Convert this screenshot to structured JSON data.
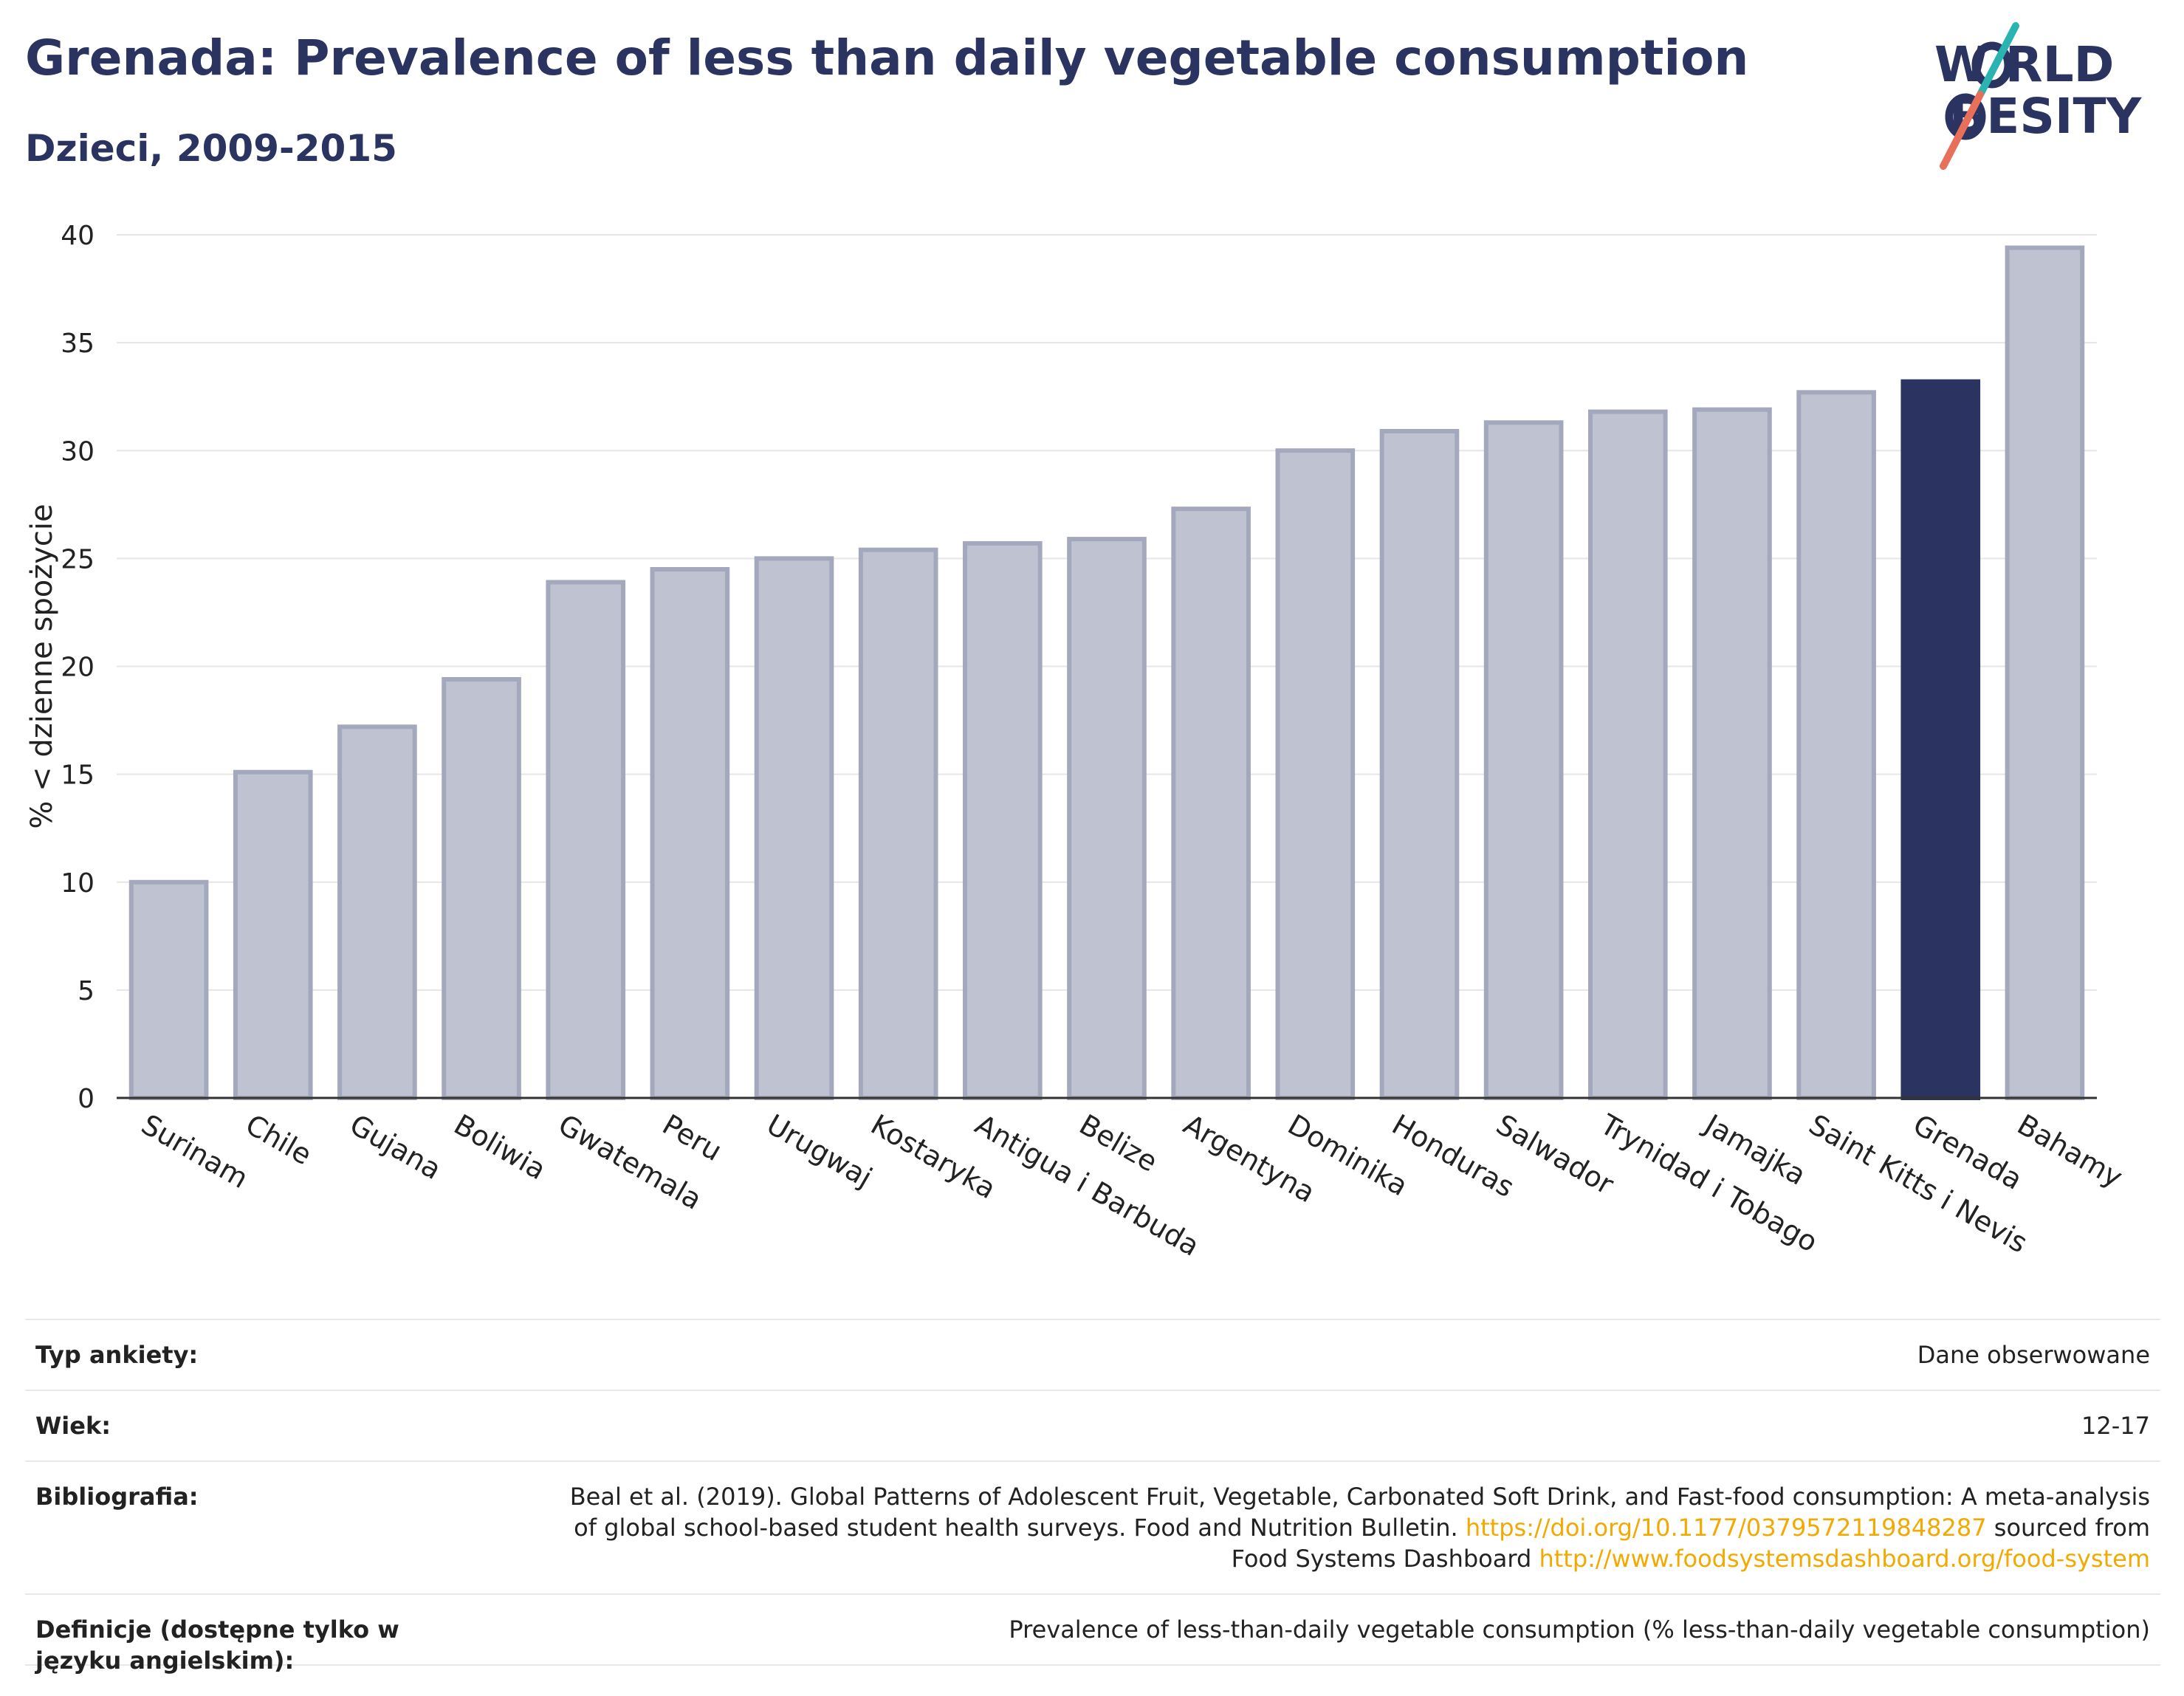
{
  "header": {
    "title": "Grenada: Prevalence of less than daily vegetable consumption",
    "subtitle": "Dzieci, 2009-2015"
  },
  "logo": {
    "line1": "W RLD",
    "line2": "BESITY",
    "accent_teal": "#2ab3b1",
    "accent_coral": "#e8705a"
  },
  "colors": {
    "bar": "#bfc2d0",
    "bar_stroke": "#a4a8bc",
    "highlight": "#2b3461",
    "grid": "#e6e6e6",
    "axis": "#333333"
  },
  "chart_data": {
    "type": "bar",
    "ylabel": "% < dzienne spożycie",
    "ylim": [
      0,
      40
    ],
    "yticks": [
      0,
      5,
      10,
      15,
      20,
      25,
      30,
      35,
      40
    ],
    "categories": [
      "Surinam",
      "Chile",
      "Gujana",
      "Boliwia",
      "Gwatemala",
      "Peru",
      "Urugwaj",
      "Kostaryka",
      "Antigua i Barbuda",
      "Belize",
      "Argentyna",
      "Dominika",
      "Honduras",
      "Salwador",
      "Trynidad i Tobago",
      "Jamajka",
      "Saint Kitts i Nevis",
      "Grenada",
      "Bahamy"
    ],
    "values": [
      10.0,
      15.1,
      17.2,
      19.4,
      23.9,
      24.5,
      25.0,
      25.4,
      25.7,
      25.9,
      27.3,
      30.0,
      30.9,
      31.3,
      31.8,
      31.9,
      32.7,
      33.2,
      39.4
    ],
    "highlight": "Grenada"
  },
  "info": {
    "survey_type": {
      "label": "Typ ankiety:",
      "value": "Dane obserwowane"
    },
    "age": {
      "label": "Wiek:",
      "value": "12-17"
    },
    "bibliography": {
      "label": "Bibliografia:",
      "text1": "Beal et al. (2019). Global Patterns of Adolescent Fruit, Vegetable, Carbonated Soft Drink, and Fast-food consumption: A meta-analysis of global school-based student health surveys. Food and Nutrition Bulletin.",
      "link1": "https://doi.org/10.1177/0379572119848287",
      "text2": "sourced from Food Systems Dashboard",
      "link2": "http://www.foodsystemsdashboard.org/food-system"
    },
    "definitions": {
      "label": "Definicje (dostępne tylko w języku angielskim):",
      "value": "Prevalence of less-than-daily vegetable consumption (% less-than-daily vegetable consumption)"
    }
  }
}
